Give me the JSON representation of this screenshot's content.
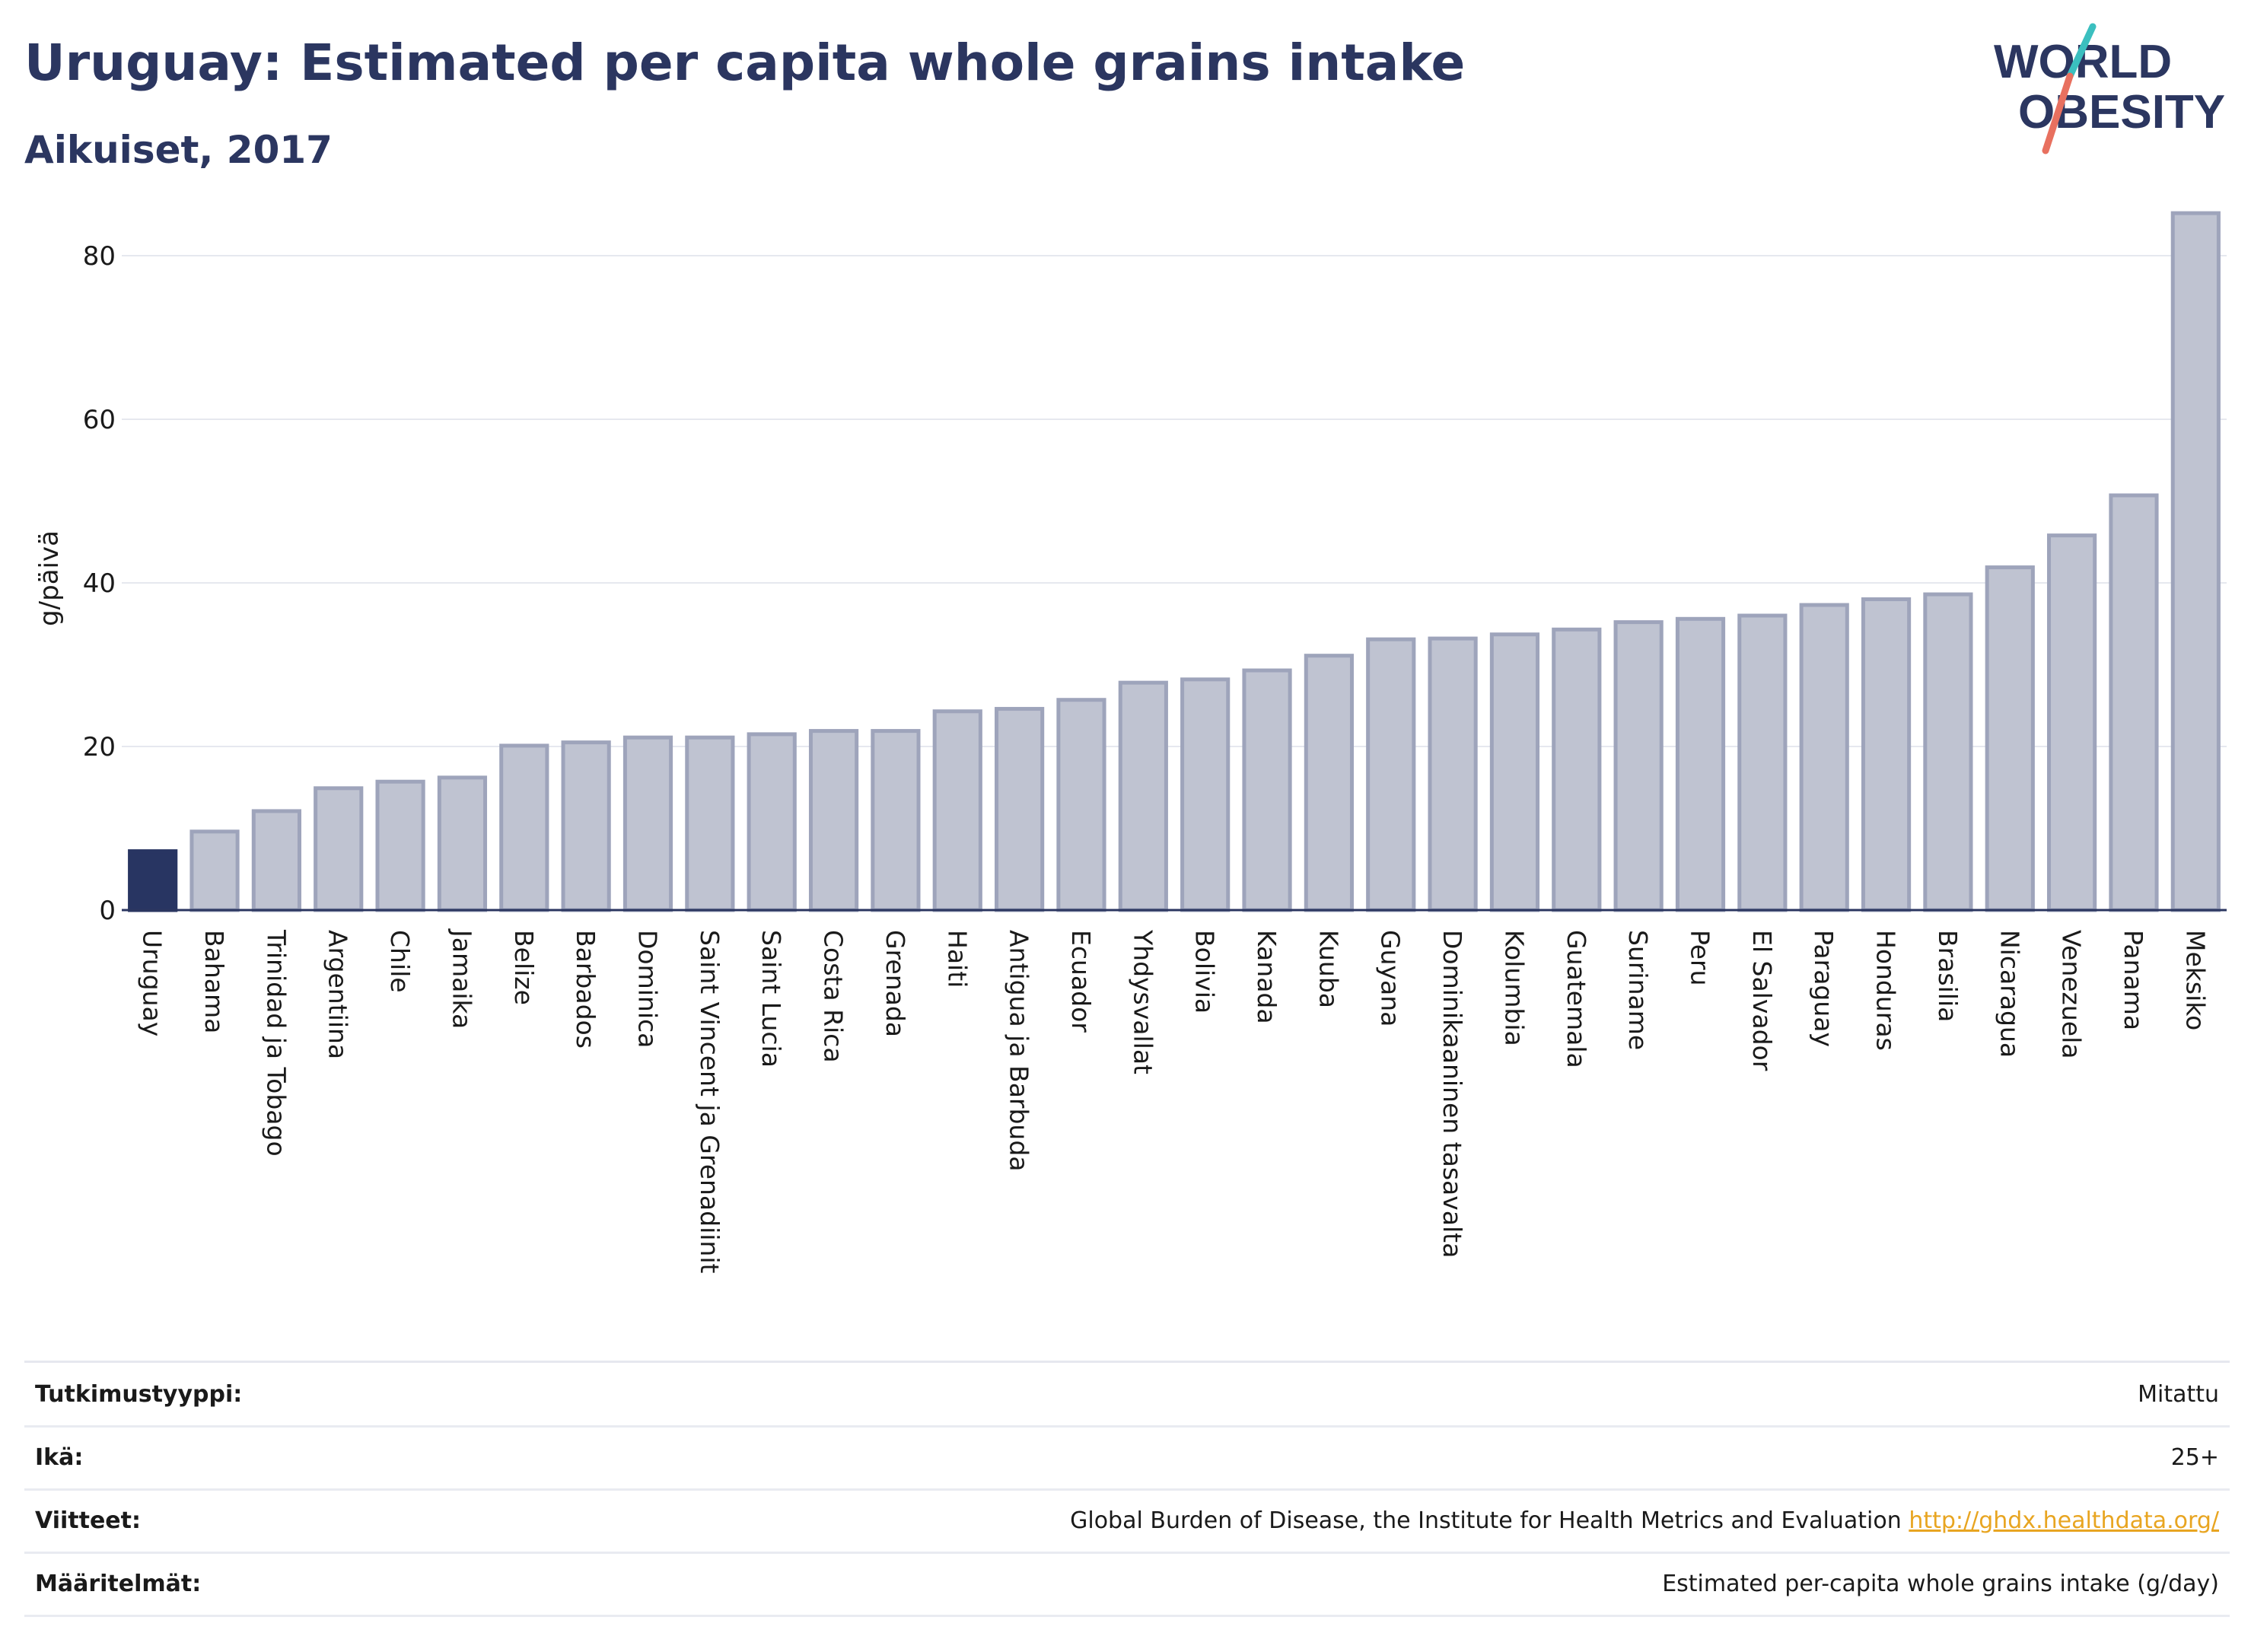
{
  "title": "Uruguay: Estimated per capita whole grains intake",
  "subtitle": "Aikuiset, 2017",
  "logo": {
    "line1": "WORLD",
    "line2": "OBESITY",
    "colors": {
      "text": "#2b3660",
      "slash_top": "#3bbfbf",
      "slash_bottom": "#e8705f"
    }
  },
  "chart_data": {
    "type": "bar",
    "ylabel": "g/päivä",
    "ylim": [
      0,
      88
    ],
    "yticks": [
      0,
      20,
      40,
      60,
      80
    ],
    "grid": true,
    "highlight_category": "Uruguay",
    "colors": {
      "highlight": "#283562",
      "bar_fill": "#bfc3d1",
      "bar_stroke": "#9ea4bb"
    },
    "categories": [
      "Uruguay",
      "Bahama",
      "Trinidad ja Tobago",
      "Argentiina",
      "Chile",
      "Jamaika",
      "Belize",
      "Barbados",
      "Dominica",
      "Saint Vincent ja Grenadiinit",
      "Saint Lucia",
      "Costa Rica",
      "Grenada",
      "Haiti",
      "Antigua ja Barbuda",
      "Ecuador",
      "Yhdysvallat",
      "Bolivia",
      "Kanada",
      "Kuuba",
      "Guyana",
      "Dominikaaninen tasavalta",
      "Kolumbia",
      "Guatemala",
      "Suriname",
      "Peru",
      "El Salvador",
      "Paraguay",
      "Honduras",
      "Brasilia",
      "Nicaragua",
      "Venezuela",
      "Panama",
      "Meksiko"
    ],
    "values": [
      7.2,
      9.6,
      12.1,
      14.9,
      15.7,
      16.2,
      20.1,
      20.5,
      21.1,
      21.1,
      21.5,
      21.9,
      21.9,
      24.3,
      24.6,
      25.7,
      27.8,
      28.2,
      29.3,
      31.1,
      33.1,
      33.2,
      33.7,
      34.3,
      35.2,
      35.6,
      36.0,
      37.3,
      38.0,
      38.6,
      41.9,
      45.8,
      50.7,
      85.2
    ]
  },
  "info": [
    {
      "label": "Tutkimustyyppi:",
      "value": "Mitattu"
    },
    {
      "label": "Ikä:",
      "value": "25+"
    },
    {
      "label": "Viitteet:",
      "value": "Global Burden of Disease, the Institute for Health Metrics and Evaluation",
      "link": "http://ghdx.healthdata.org/"
    },
    {
      "label": "Määritelmät:",
      "value": "Estimated per-capita whole grains intake (g/day)"
    }
  ]
}
